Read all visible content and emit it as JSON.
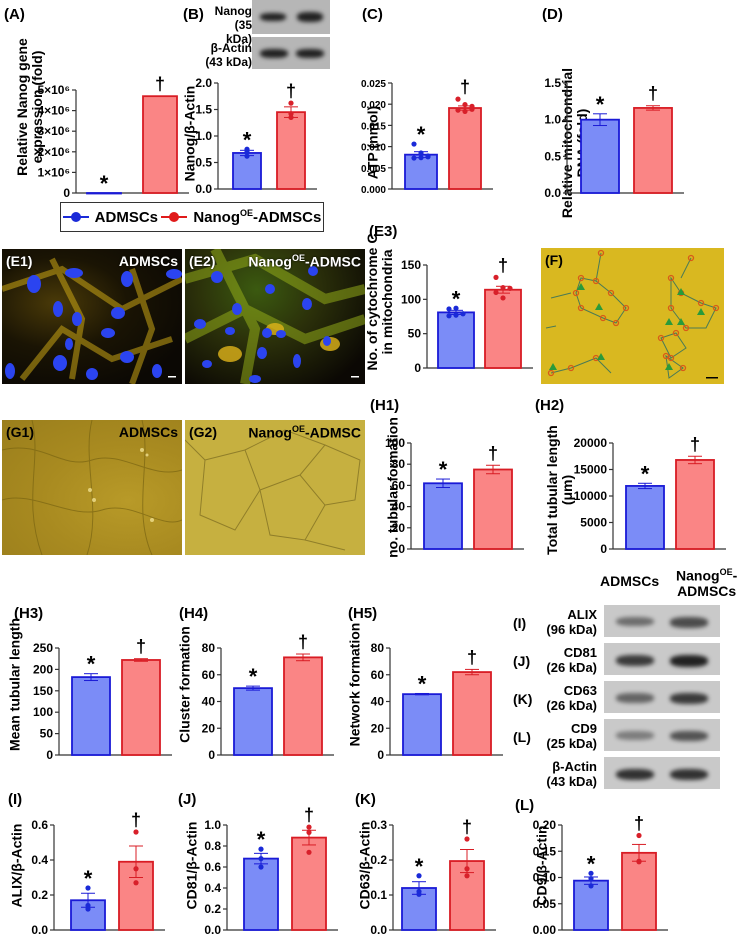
{
  "colors": {
    "group1_fill": "#7b8cf7",
    "group1_edge": "#1a1ad6",
    "group2_fill": "#fa8585",
    "group2_edge": "#d81c24",
    "dot1": "#1a2ad8",
    "dot2": "#d8202a",
    "microscopy_yellow": "#d9b820",
    "fluor_bg": "#0b0804"
  },
  "legend": {
    "group1": "ADMSCs",
    "group2_prefix": "Nanog",
    "group2_sup": "OE",
    "group2_suffix": "-ADMSCs"
  },
  "panels": {
    "A": {
      "label": "(A)",
      "ylabel_line1": "Relative Nanog gene",
      "ylabel_line2": "expression (fold)"
    },
    "B": {
      "label": "(B)",
      "ylabel": "Nanog/β-Actin",
      "blot_rows": [
        {
          "name": "Nanog",
          "kda": "(35 kDa)"
        },
        {
          "name": "β-Actin",
          "kda": "(43 kDa)"
        }
      ]
    },
    "C": {
      "label": "(C)",
      "ylabel": "ATP (nmol)"
    },
    "D": {
      "label": "(D)",
      "ylabel_line1": "Relative mitochondrial",
      "ylabel_line2": "DNA (fold)"
    },
    "E1": {
      "label": "(E1)",
      "caption": "ADMSCs"
    },
    "E2": {
      "label": "(E2)",
      "caption_prefix": "Nanog",
      "caption_sup": "OE",
      "caption_suffix": "-ADMSC"
    },
    "E3": {
      "label": "(E3)",
      "ylabel_line1": "No. of cytochrome C",
      "ylabel_line2": "in mitochondria"
    },
    "F": {
      "label": "(F)"
    },
    "G1": {
      "label": "(G1)",
      "caption": "ADMSCs"
    },
    "G2": {
      "label": "(G2)",
      "caption_prefix": "Nanog",
      "caption_sup": "OE",
      "caption_suffix": "-ADMSC"
    },
    "H1": {
      "label": "(H1)",
      "ylabel": "no. tubular formation"
    },
    "H2": {
      "label": "(H2)",
      "ylabel_line1": "Total tubular length",
      "ylabel_line2": "(μm)"
    },
    "H3": {
      "label": "(H3)",
      "ylabel": "Mean tubular length"
    },
    "H4": {
      "label": "(H4)",
      "ylabel": "Cluster formation"
    },
    "H5": {
      "label": "(H5)",
      "ylabel": "Network formation"
    },
    "blot_IL": {
      "col1": "ADMSCs",
      "col2_line1_prefix": "Nanog",
      "col2_line1_sup": "OE",
      "col2_line1_suffix": "-",
      "col2_line2": "ADMSCs",
      "rows": [
        {
          "tag": "(I)",
          "name": "ALIX",
          "kda": "(96 kDa)"
        },
        {
          "tag": "(J)",
          "name": "CD81",
          "kda": "(26 kDa)"
        },
        {
          "tag": "(K)",
          "name": "CD63",
          "kda": "(26 kDa)"
        },
        {
          "tag": "(L)",
          "name": "CD9",
          "kda": "(25 kDa)"
        },
        {
          "tag": "",
          "name": "β-Actin",
          "kda": "(43 kDa)"
        }
      ]
    },
    "I": {
      "label": "(I)",
      "ylabel": "ALIX/β-Actin"
    },
    "J": {
      "label": "(J)",
      "ylabel": "CD81/β-Actin"
    },
    "K": {
      "label": "(K)",
      "ylabel": "CD63/β-Actin"
    },
    "L": {
      "label": "(L)",
      "ylabel": "CD9/β-Actin"
    }
  },
  "chart_data": [
    {
      "id": "A",
      "type": "bar",
      "categories": [
        "ADMSCs",
        "NanogOE-ADMSCs"
      ],
      "values": [
        1,
        4700000
      ],
      "ylabel": "Relative Nanog gene expression (fold)",
      "ylim": [
        0,
        5000000
      ],
      "yticks": [
        "0",
        "1×10⁶",
        "2×10⁶",
        "3×10⁶",
        "4×10⁶",
        "5×10⁶"
      ],
      "annotations": [
        "*",
        "†"
      ]
    },
    {
      "id": "B",
      "type": "bar",
      "categories": [
        "ADMSCs",
        "NanogOE-ADMSCs"
      ],
      "values": [
        0.68,
        1.45
      ],
      "errors": [
        0.05,
        0.1
      ],
      "points": [
        [
          0.75,
          0.7,
          0.62
        ],
        [
          1.62,
          1.42,
          1.35
        ]
      ],
      "ylabel": "Nanog/β-Actin",
      "ylim": [
        0,
        2.0
      ],
      "yticks": [
        "0.0",
        "0.5",
        "1.0",
        "1.5",
        "2.0"
      ],
      "annotations": [
        "*",
        "†"
      ]
    },
    {
      "id": "C",
      "type": "bar",
      "categories": [
        "ADMSCs",
        "NanogOE-ADMSCs"
      ],
      "values": [
        0.0081,
        0.0191
      ],
      "errors": [
        0.0007,
        0.0005
      ],
      "points": [
        [
          0.0106,
          0.0085,
          0.0078,
          0.0073,
          0.0074,
          0.0076
        ],
        [
          0.0212,
          0.0199,
          0.0195,
          0.0186,
          0.0183,
          0.0188
        ]
      ],
      "ylabel": "ATP (nmol)",
      "ylim": [
        0,
        0.025
      ],
      "yticks": [
        "0.000",
        "0.005",
        "0.010",
        "0.015",
        "0.020",
        "0.025"
      ],
      "annotations": [
        "*",
        "†"
      ]
    },
    {
      "id": "D",
      "type": "bar",
      "categories": [
        "ADMSCs",
        "NanogOE-ADMSCs"
      ],
      "values": [
        1.0,
        1.16
      ],
      "errors": [
        0.08,
        0.03
      ],
      "ylabel": "Relative mitochondrial DNA (fold)",
      "ylim": [
        0,
        1.5
      ],
      "yticks": [
        "0.0",
        "0.5",
        "1.0",
        "1.5"
      ],
      "annotations": [
        "*",
        "†"
      ]
    },
    {
      "id": "E3",
      "type": "bar",
      "categories": [
        "ADMSCs",
        "NanogOE-ADMSCs"
      ],
      "values": [
        81,
        114
      ],
      "errors": [
        3,
        5
      ],
      "points": [
        [
          86,
          87,
          79,
          76,
          77
        ],
        [
          132,
          117,
          116,
          110,
          102
        ]
      ],
      "ylabel": "No. of cytochrome C in mitochondria",
      "ylim": [
        0,
        150
      ],
      "yticks": [
        "0",
        "50",
        "100",
        "150"
      ],
      "annotations": [
        "*",
        "†"
      ]
    },
    {
      "id": "H1",
      "type": "bar",
      "categories": [
        "ADMSCs",
        "NanogOE-ADMSCs"
      ],
      "values": [
        62,
        75
      ],
      "errors": [
        4,
        4
      ],
      "ylabel": "no. tubular formation",
      "ylim": [
        0,
        100
      ],
      "yticks": [
        "0",
        "20",
        "40",
        "60",
        "80",
        "100"
      ],
      "annotations": [
        "*",
        "†"
      ]
    },
    {
      "id": "H2",
      "type": "bar",
      "categories": [
        "ADMSCs",
        "NanogOE-ADMSCs"
      ],
      "values": [
        11900,
        16800
      ],
      "errors": [
        500,
        700
      ],
      "ylabel": "Total tubular length (μm)",
      "ylim": [
        0,
        20000
      ],
      "yticks": [
        "0",
        "5000",
        "10000",
        "15000",
        "20000"
      ],
      "annotations": [
        "*",
        "†"
      ]
    },
    {
      "id": "H3",
      "type": "bar",
      "categories": [
        "ADMSCs",
        "NanogOE-ADMSCs"
      ],
      "values": [
        182,
        222
      ],
      "errors": [
        8,
        3
      ],
      "ylabel": "Mean tubular length",
      "ylim": [
        0,
        250
      ],
      "yticks": [
        "0",
        "50",
        "100",
        "150",
        "200",
        "250"
      ],
      "annotations": [
        "*",
        "†"
      ]
    },
    {
      "id": "H4",
      "type": "bar",
      "categories": [
        "ADMSCs",
        "NanogOE-ADMSCs"
      ],
      "values": [
        50,
        73
      ],
      "errors": [
        1.5,
        2.5
      ],
      "ylabel": "Cluster formation",
      "ylim": [
        0,
        80
      ],
      "yticks": [
        "0",
        "20",
        "40",
        "60",
        "80"
      ],
      "annotations": [
        "*",
        "†"
      ]
    },
    {
      "id": "H5",
      "type": "bar",
      "categories": [
        "ADMSCs",
        "NanogOE-ADMSCs"
      ],
      "values": [
        45.5,
        62
      ],
      "errors": [
        0.5,
        2
      ],
      "ylabel": "Network formation",
      "ylim": [
        0,
        80
      ],
      "yticks": [
        "0",
        "20",
        "40",
        "60",
        "80"
      ],
      "annotations": [
        "*",
        "†"
      ]
    },
    {
      "id": "I",
      "type": "bar",
      "categories": [
        "ADMSCs",
        "NanogOE-ADMSCs"
      ],
      "values": [
        0.17,
        0.39
      ],
      "errors": [
        0.04,
        0.09
      ],
      "points": [
        [
          0.24,
          0.14,
          0.12
        ],
        [
          0.56,
          0.35,
          0.27
        ]
      ],
      "ylabel": "ALIX/β-Actin",
      "ylim": [
        0,
        0.6
      ],
      "yticks": [
        "0.0",
        "0.2",
        "0.4",
        "0.6"
      ],
      "annotations": [
        "*",
        "†"
      ]
    },
    {
      "id": "J",
      "type": "bar",
      "categories": [
        "ADMSCs",
        "NanogOE-ADMSCs"
      ],
      "values": [
        0.68,
        0.88
      ],
      "errors": [
        0.05,
        0.07
      ],
      "points": [
        [
          0.77,
          0.68,
          0.6
        ],
        [
          0.98,
          0.93,
          0.74
        ]
      ],
      "ylabel": "CD81/β-Actin",
      "ylim": [
        0,
        1.0
      ],
      "yticks": [
        "0.0",
        "0.2",
        "0.4",
        "0.6",
        "0.8",
        "1.0"
      ],
      "annotations": [
        "*",
        "†"
      ]
    },
    {
      "id": "K",
      "type": "bar",
      "categories": [
        "ADMSCs",
        "NanogOE-ADMSCs"
      ],
      "values": [
        0.12,
        0.197
      ],
      "errors": [
        0.018,
        0.033
      ],
      "points": [
        [
          0.155,
          0.11,
          0.102
        ],
        [
          0.26,
          0.175,
          0.155
        ]
      ],
      "ylabel": "CD63/β-Actin",
      "ylim": [
        0,
        0.3
      ],
      "yticks": [
        "0.0",
        "0.1",
        "0.2",
        "0.3"
      ],
      "annotations": [
        "*",
        "†"
      ]
    },
    {
      "id": "L",
      "type": "bar",
      "categories": [
        "ADMSCs",
        "NanogOE-ADMSCs"
      ],
      "values": [
        0.094,
        0.147
      ],
      "errors": [
        0.007,
        0.016
      ],
      "points": [
        [
          0.108,
          0.098,
          0.084
        ],
        [
          0.18,
          0.131,
          0.13
        ]
      ],
      "ylabel": "CD9/β-Actin",
      "ylim": [
        0,
        0.2
      ],
      "yticks": [
        "0.00",
        "0.05",
        "0.10",
        "0.15",
        "0.20"
      ],
      "annotations": [
        "*",
        "†"
      ]
    }
  ]
}
